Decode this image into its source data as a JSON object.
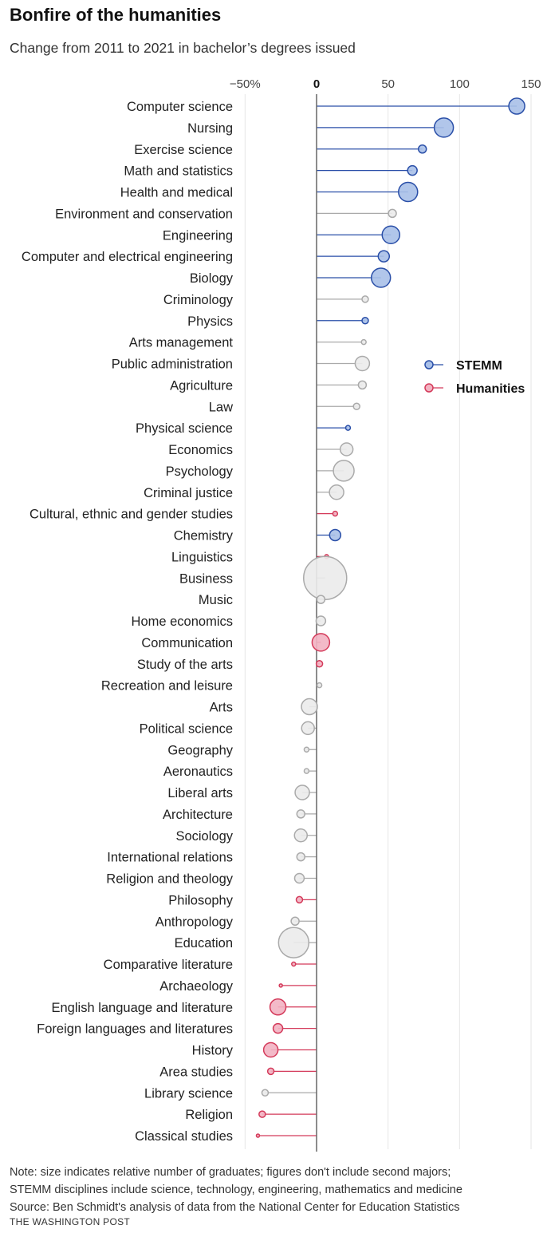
{
  "title": "Bonfire of the humanities",
  "subtitle": "Change from 2011 to 2021 in bachelor’s degrees issued",
  "notes": [
    "Note: size indicates relative number of graduates; figures don't include second majors;",
    "STEMM disciplines include science, technology, engineering, mathematics and medicine",
    "Source: Ben Schmidt's analysis of data from the National Center for Education Statistics"
  ],
  "credit": "THE WASHINGTON POST",
  "colors": {
    "STEMM": "#2a4fa8",
    "STEMM_fill": "#a9c0e8",
    "Humanities": "#d43a5a",
    "Humanities_fill": "#f2b3c2",
    "Other": "#aaaaaa",
    "Other_fill": "#ebebeb"
  },
  "chart_data": {
    "type": "lollipop",
    "title": "Bonfire of the humanities",
    "subtitle": "Change from 2011 to 2021 in bachelor’s degrees issued",
    "xlim": [
      -50,
      155
    ],
    "x_ticks": [
      -50,
      0,
      50,
      100,
      150
    ],
    "x_tick_labels": [
      "−50%",
      "0",
      "50",
      "100",
      "150"
    ],
    "grid": true,
    "legend": {
      "placement": "right",
      "entries": [
        "STEMM",
        "Humanities"
      ]
    },
    "size_encoding": "relative number of graduates",
    "rows": [
      {
        "label": "Computer science",
        "value": 140,
        "group": "STEMM",
        "size": 10
      },
      {
        "label": "Nursing",
        "value": 89,
        "group": "STEMM",
        "size": 12
      },
      {
        "label": "Exercise science",
        "value": 74,
        "group": "STEMM",
        "size": 5
      },
      {
        "label": "Math and statistics",
        "value": 67,
        "group": "STEMM",
        "size": 6
      },
      {
        "label": "Health and medical",
        "value": 64,
        "group": "STEMM",
        "size": 12
      },
      {
        "label": "Environment and conservation",
        "value": 53,
        "group": "Other",
        "size": 5
      },
      {
        "label": "Engineering",
        "value": 52,
        "group": "STEMM",
        "size": 11
      },
      {
        "label": "Computer and electrical engineering",
        "value": 47,
        "group": "STEMM",
        "size": 7
      },
      {
        "label": "Biology",
        "value": 45,
        "group": "STEMM",
        "size": 12
      },
      {
        "label": "Criminology",
        "value": 34,
        "group": "Other",
        "size": 4
      },
      {
        "label": "Physics",
        "value": 34,
        "group": "STEMM",
        "size": 4
      },
      {
        "label": "Arts management",
        "value": 33,
        "group": "Other",
        "size": 3
      },
      {
        "label": "Public administration",
        "value": 32,
        "group": "Other",
        "size": 9
      },
      {
        "label": "Agriculture",
        "value": 32,
        "group": "Other",
        "size": 5
      },
      {
        "label": "Law",
        "value": 28,
        "group": "Other",
        "size": 4
      },
      {
        "label": "Physical science",
        "value": 22,
        "group": "STEMM",
        "size": 3
      },
      {
        "label": "Economics",
        "value": 21,
        "group": "Other",
        "size": 8
      },
      {
        "label": "Psychology",
        "value": 19,
        "group": "Other",
        "size": 13
      },
      {
        "label": "Criminal justice",
        "value": 14,
        "group": "Other",
        "size": 9
      },
      {
        "label": "Cultural, ethnic and gender studies",
        "value": 13,
        "group": "Humanities",
        "size": 3
      },
      {
        "label": "Chemistry",
        "value": 13,
        "group": "STEMM",
        "size": 7
      },
      {
        "label": "Linguistics",
        "value": 7,
        "group": "Humanities",
        "size": 2.5
      },
      {
        "label": "Business",
        "value": 6,
        "group": "Other",
        "size": 27
      },
      {
        "label": "Music",
        "value": 3,
        "group": "Other",
        "size": 5
      },
      {
        "label": "Home economics",
        "value": 3,
        "group": "Other",
        "size": 6
      },
      {
        "label": "Communication",
        "value": 3,
        "group": "Humanities",
        "size": 11
      },
      {
        "label": "Study of the arts",
        "value": 2,
        "group": "Humanities",
        "size": 4
      },
      {
        "label": "Recreation and leisure",
        "value": 2,
        "group": "Other",
        "size": 3
      },
      {
        "label": "Arts",
        "value": -5,
        "group": "Other",
        "size": 10
      },
      {
        "label": "Political science",
        "value": -6,
        "group": "Other",
        "size": 8
      },
      {
        "label": "Geography",
        "value": -7,
        "group": "Other",
        "size": 3
      },
      {
        "label": "Aeronautics",
        "value": -7,
        "group": "Other",
        "size": 3
      },
      {
        "label": "Liberal arts",
        "value": -10,
        "group": "Other",
        "size": 9
      },
      {
        "label": "Architecture",
        "value": -11,
        "group": "Other",
        "size": 5
      },
      {
        "label": "Sociology",
        "value": -11,
        "group": "Other",
        "size": 8
      },
      {
        "label": "International relations",
        "value": -11,
        "group": "Other",
        "size": 5
      },
      {
        "label": "Religion and theology",
        "value": -12,
        "group": "Other",
        "size": 6
      },
      {
        "label": "Philosophy",
        "value": -12,
        "group": "Humanities",
        "size": 4
      },
      {
        "label": "Anthropology",
        "value": -15,
        "group": "Other",
        "size": 5
      },
      {
        "label": "Education",
        "value": -16,
        "group": "Other",
        "size": 19
      },
      {
        "label": "Comparative literature",
        "value": -16,
        "group": "Humanities",
        "size": 2.5
      },
      {
        "label": "Archaeology",
        "value": -25,
        "group": "Humanities",
        "size": 2
      },
      {
        "label": "English language and literature",
        "value": -27,
        "group": "Humanities",
        "size": 10
      },
      {
        "label": "Foreign languages and literatures",
        "value": -27,
        "group": "Humanities",
        "size": 6
      },
      {
        "label": "History",
        "value": -32,
        "group": "Humanities",
        "size": 9
      },
      {
        "label": "Area studies",
        "value": -32,
        "group": "Humanities",
        "size": 4
      },
      {
        "label": "Library science",
        "value": -36,
        "group": "Other",
        "size": 4
      },
      {
        "label": "Religion",
        "value": -38,
        "group": "Humanities",
        "size": 4
      },
      {
        "label": "Classical studies",
        "value": -41,
        "group": "Humanities",
        "size": 2
      }
    ]
  }
}
